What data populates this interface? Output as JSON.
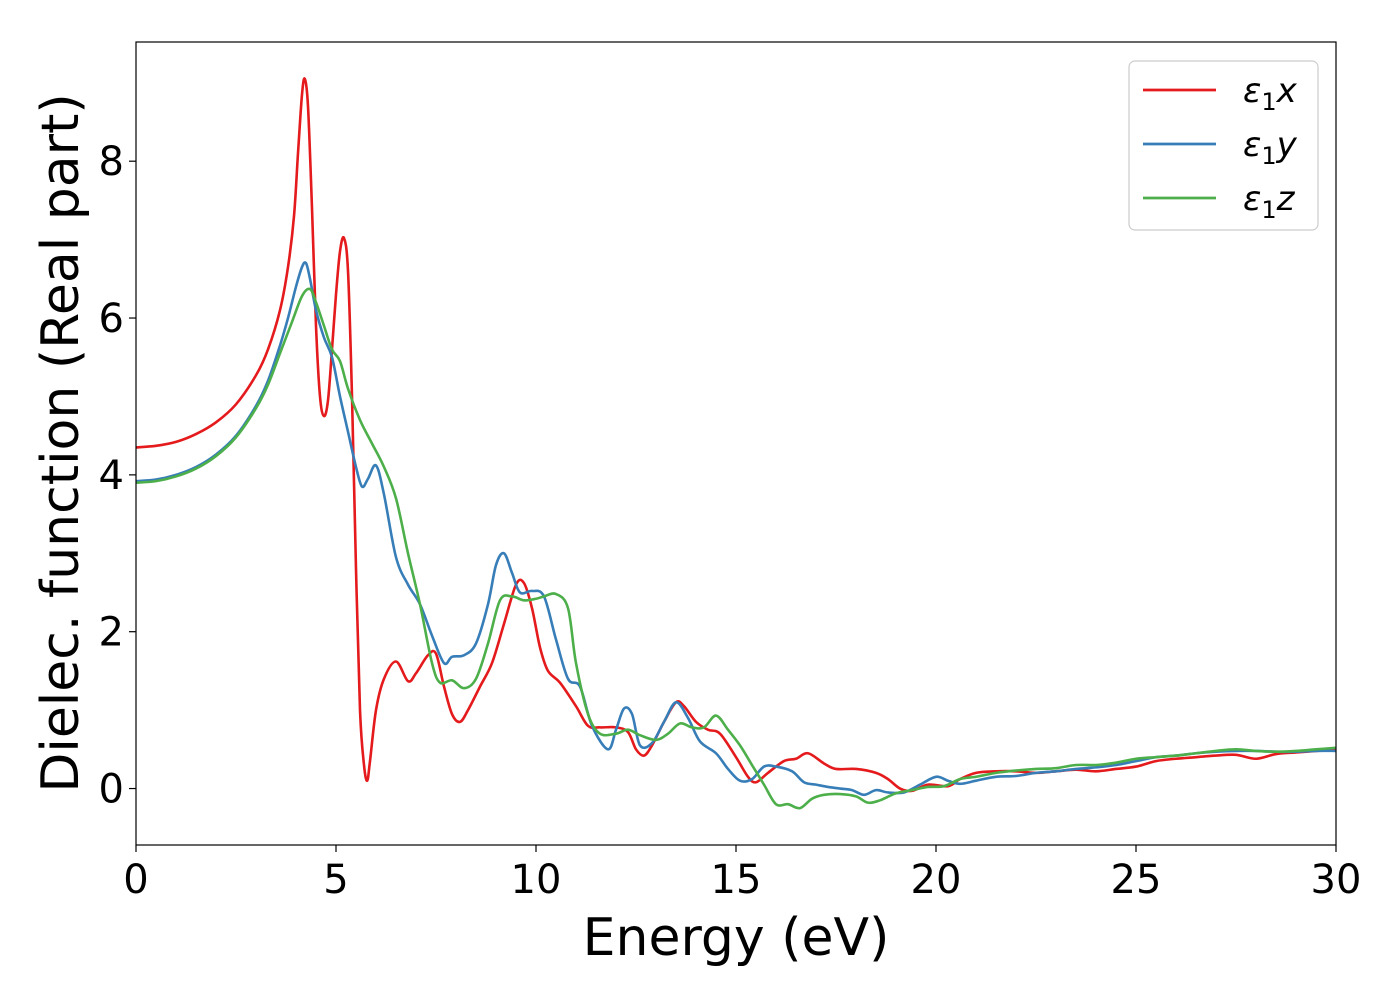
{
  "chart_data": {
    "type": "line",
    "xlabel": "Energy (eV)",
    "ylabel": "Dielec. function (Real part)",
    "xlim": [
      0,
      30
    ],
    "ylim": [
      -0.72,
      9.52
    ],
    "xticks": [
      0,
      5,
      10,
      15,
      20,
      25,
      30
    ],
    "yticks": [
      0,
      2,
      4,
      6,
      8
    ],
    "grid": false,
    "legend_position": "top-right",
    "series": [
      {
        "name": "ε1x",
        "legend_main": "ε",
        "legend_sub": "1",
        "legend_tail": "x",
        "color": "#e41a1c",
        "points": [
          [
            0,
            4.35
          ],
          [
            0.5,
            4.37
          ],
          [
            1,
            4.42
          ],
          [
            1.5,
            4.52
          ],
          [
            2,
            4.67
          ],
          [
            2.5,
            4.9
          ],
          [
            3,
            5.27
          ],
          [
            3.3,
            5.6
          ],
          [
            3.6,
            6.1
          ],
          [
            3.8,
            6.65
          ],
          [
            3.95,
            7.3
          ],
          [
            4.05,
            8.1
          ],
          [
            4.15,
            8.85
          ],
          [
            4.22,
            9.05
          ],
          [
            4.3,
            8.7
          ],
          [
            4.4,
            7.4
          ],
          [
            4.5,
            5.9
          ],
          [
            4.6,
            5.0
          ],
          [
            4.7,
            4.75
          ],
          [
            4.8,
            4.95
          ],
          [
            4.9,
            5.6
          ],
          [
            5.0,
            6.3
          ],
          [
            5.1,
            6.85
          ],
          [
            5.2,
            7.02
          ],
          [
            5.3,
            6.6
          ],
          [
            5.4,
            5.0
          ],
          [
            5.5,
            2.8
          ],
          [
            5.6,
            1.0
          ],
          [
            5.7,
            0.3
          ],
          [
            5.78,
            0.1
          ],
          [
            5.85,
            0.35
          ],
          [
            6.0,
            1.0
          ],
          [
            6.2,
            1.4
          ],
          [
            6.5,
            1.62
          ],
          [
            6.8,
            1.37
          ],
          [
            7.0,
            1.47
          ],
          [
            7.3,
            1.7
          ],
          [
            7.5,
            1.72
          ],
          [
            7.7,
            1.3
          ],
          [
            7.9,
            0.95
          ],
          [
            8.1,
            0.85
          ],
          [
            8.3,
            1.0
          ],
          [
            8.6,
            1.3
          ],
          [
            8.9,
            1.6
          ],
          [
            9.2,
            2.1
          ],
          [
            9.5,
            2.6
          ],
          [
            9.7,
            2.62
          ],
          [
            9.9,
            2.3
          ],
          [
            10.1,
            1.8
          ],
          [
            10.3,
            1.5
          ],
          [
            10.6,
            1.35
          ],
          [
            11.0,
            1.05
          ],
          [
            11.3,
            0.8
          ],
          [
            11.6,
            0.78
          ],
          [
            12.0,
            0.78
          ],
          [
            12.3,
            0.72
          ],
          [
            12.5,
            0.5
          ],
          [
            12.7,
            0.42
          ],
          [
            12.9,
            0.55
          ],
          [
            13.2,
            0.85
          ],
          [
            13.5,
            1.1
          ],
          [
            13.7,
            1.05
          ],
          [
            14.0,
            0.85
          ],
          [
            14.3,
            0.75
          ],
          [
            14.6,
            0.7
          ],
          [
            15.0,
            0.4
          ],
          [
            15.3,
            0.15
          ],
          [
            15.5,
            0.08
          ],
          [
            15.8,
            0.2
          ],
          [
            16.2,
            0.35
          ],
          [
            16.5,
            0.38
          ],
          [
            16.8,
            0.45
          ],
          [
            17.2,
            0.32
          ],
          [
            17.5,
            0.25
          ],
          [
            18.0,
            0.25
          ],
          [
            18.5,
            0.2
          ],
          [
            18.8,
            0.12
          ],
          [
            19.1,
            0.0
          ],
          [
            19.4,
            -0.03
          ],
          [
            19.8,
            0.05
          ],
          [
            20.3,
            0.03
          ],
          [
            20.6,
            0.12
          ],
          [
            21.0,
            0.2
          ],
          [
            21.5,
            0.22
          ],
          [
            22.0,
            0.22
          ],
          [
            22.5,
            0.2
          ],
          [
            23.0,
            0.22
          ],
          [
            23.5,
            0.24
          ],
          [
            24.0,
            0.22
          ],
          [
            24.5,
            0.25
          ],
          [
            25.0,
            0.28
          ],
          [
            25.5,
            0.35
          ],
          [
            26.0,
            0.38
          ],
          [
            26.5,
            0.4
          ],
          [
            27.0,
            0.42
          ],
          [
            27.5,
            0.43
          ],
          [
            28.0,
            0.38
          ],
          [
            28.5,
            0.44
          ],
          [
            29.0,
            0.46
          ],
          [
            29.5,
            0.48
          ],
          [
            30.0,
            0.5
          ]
        ]
      },
      {
        "name": "ε1y",
        "legend_main": "ε",
        "legend_sub": "1",
        "legend_tail": "y",
        "color": "#377eb8",
        "points": [
          [
            0,
            3.92
          ],
          [
            0.5,
            3.94
          ],
          [
            1,
            4.0
          ],
          [
            1.5,
            4.1
          ],
          [
            2,
            4.26
          ],
          [
            2.5,
            4.5
          ],
          [
            3,
            4.88
          ],
          [
            3.3,
            5.2
          ],
          [
            3.6,
            5.65
          ],
          [
            3.8,
            6.0
          ],
          [
            4.0,
            6.4
          ],
          [
            4.15,
            6.65
          ],
          [
            4.25,
            6.7
          ],
          [
            4.35,
            6.5
          ],
          [
            4.5,
            6.1
          ],
          [
            4.7,
            5.75
          ],
          [
            4.9,
            5.5
          ],
          [
            5.1,
            5.0
          ],
          [
            5.3,
            4.55
          ],
          [
            5.5,
            4.1
          ],
          [
            5.65,
            3.85
          ],
          [
            5.8,
            3.95
          ],
          [
            6.0,
            4.12
          ],
          [
            6.2,
            3.75
          ],
          [
            6.5,
            2.95
          ],
          [
            6.8,
            2.6
          ],
          [
            7.1,
            2.35
          ],
          [
            7.4,
            1.95
          ],
          [
            7.7,
            1.6
          ],
          [
            7.9,
            1.68
          ],
          [
            8.2,
            1.7
          ],
          [
            8.5,
            1.85
          ],
          [
            8.8,
            2.35
          ],
          [
            9.0,
            2.85
          ],
          [
            9.2,
            3.0
          ],
          [
            9.4,
            2.75
          ],
          [
            9.6,
            2.5
          ],
          [
            9.9,
            2.52
          ],
          [
            10.2,
            2.45
          ],
          [
            10.5,
            1.9
          ],
          [
            10.8,
            1.4
          ],
          [
            11.1,
            1.3
          ],
          [
            11.4,
            0.8
          ],
          [
            11.8,
            0.5
          ],
          [
            12.0,
            0.75
          ],
          [
            12.2,
            1.02
          ],
          [
            12.4,
            0.95
          ],
          [
            12.6,
            0.55
          ],
          [
            12.9,
            0.58
          ],
          [
            13.2,
            0.85
          ],
          [
            13.5,
            1.1
          ],
          [
            13.8,
            0.9
          ],
          [
            14.1,
            0.6
          ],
          [
            14.5,
            0.45
          ],
          [
            14.8,
            0.25
          ],
          [
            15.1,
            0.1
          ],
          [
            15.4,
            0.12
          ],
          [
            15.7,
            0.28
          ],
          [
            16.0,
            0.28
          ],
          [
            16.4,
            0.22
          ],
          [
            16.7,
            0.08
          ],
          [
            17.0,
            0.05
          ],
          [
            17.3,
            0.02
          ],
          [
            17.6,
            0.0
          ],
          [
            17.9,
            -0.02
          ],
          [
            18.2,
            -0.08
          ],
          [
            18.5,
            -0.02
          ],
          [
            18.8,
            -0.05
          ],
          [
            19.2,
            -0.05
          ],
          [
            19.6,
            0.05
          ],
          [
            20.0,
            0.15
          ],
          [
            20.3,
            0.1
          ],
          [
            20.6,
            0.06
          ],
          [
            21.0,
            0.1
          ],
          [
            21.5,
            0.15
          ],
          [
            22.0,
            0.16
          ],
          [
            22.5,
            0.2
          ],
          [
            23.0,
            0.22
          ],
          [
            23.5,
            0.25
          ],
          [
            24.0,
            0.27
          ],
          [
            24.5,
            0.3
          ],
          [
            25.0,
            0.35
          ],
          [
            25.5,
            0.4
          ],
          [
            26.0,
            0.42
          ],
          [
            26.5,
            0.45
          ],
          [
            27.0,
            0.47
          ],
          [
            27.5,
            0.48
          ],
          [
            28.0,
            0.48
          ],
          [
            28.5,
            0.47
          ],
          [
            29.0,
            0.47
          ],
          [
            29.5,
            0.48
          ],
          [
            30.0,
            0.48
          ]
        ]
      },
      {
        "name": "ε1z",
        "legend_main": "ε",
        "legend_sub": "1",
        "legend_tail": "z",
        "color": "#4daf4a",
        "points": [
          [
            0,
            3.9
          ],
          [
            0.5,
            3.92
          ],
          [
            1,
            3.98
          ],
          [
            1.5,
            4.08
          ],
          [
            2,
            4.24
          ],
          [
            2.5,
            4.48
          ],
          [
            3,
            4.85
          ],
          [
            3.3,
            5.15
          ],
          [
            3.6,
            5.55
          ],
          [
            3.9,
            5.95
          ],
          [
            4.15,
            6.28
          ],
          [
            4.35,
            6.37
          ],
          [
            4.5,
            6.2
          ],
          [
            4.7,
            5.9
          ],
          [
            4.9,
            5.6
          ],
          [
            5.1,
            5.45
          ],
          [
            5.3,
            5.1
          ],
          [
            5.6,
            4.7
          ],
          [
            5.9,
            4.4
          ],
          [
            6.2,
            4.1
          ],
          [
            6.5,
            3.7
          ],
          [
            6.8,
            3.0
          ],
          [
            7.1,
            2.35
          ],
          [
            7.4,
            1.6
          ],
          [
            7.6,
            1.35
          ],
          [
            7.9,
            1.38
          ],
          [
            8.2,
            1.28
          ],
          [
            8.5,
            1.4
          ],
          [
            8.8,
            1.85
          ],
          [
            9.1,
            2.4
          ],
          [
            9.4,
            2.45
          ],
          [
            9.7,
            2.4
          ],
          [
            10.0,
            2.42
          ],
          [
            10.2,
            2.45
          ],
          [
            10.5,
            2.48
          ],
          [
            10.8,
            2.3
          ],
          [
            11.0,
            1.6
          ],
          [
            11.3,
            0.95
          ],
          [
            11.6,
            0.7
          ],
          [
            12.0,
            0.7
          ],
          [
            12.3,
            0.75
          ],
          [
            12.6,
            0.68
          ],
          [
            13.0,
            0.62
          ],
          [
            13.3,
            0.7
          ],
          [
            13.6,
            0.83
          ],
          [
            13.9,
            0.78
          ],
          [
            14.2,
            0.78
          ],
          [
            14.5,
            0.93
          ],
          [
            14.8,
            0.75
          ],
          [
            15.1,
            0.55
          ],
          [
            15.4,
            0.3
          ],
          [
            15.7,
            0.05
          ],
          [
            16.0,
            -0.2
          ],
          [
            16.3,
            -0.2
          ],
          [
            16.6,
            -0.25
          ],
          [
            16.9,
            -0.13
          ],
          [
            17.2,
            -0.08
          ],
          [
            17.6,
            -0.07
          ],
          [
            18.0,
            -0.1
          ],
          [
            18.3,
            -0.18
          ],
          [
            18.6,
            -0.15
          ],
          [
            19.0,
            -0.06
          ],
          [
            19.4,
            -0.02
          ],
          [
            19.8,
            0.02
          ],
          [
            20.2,
            0.03
          ],
          [
            20.6,
            0.12
          ],
          [
            21.0,
            0.15
          ],
          [
            21.5,
            0.2
          ],
          [
            22.0,
            0.23
          ],
          [
            22.5,
            0.25
          ],
          [
            23.0,
            0.26
          ],
          [
            23.5,
            0.3
          ],
          [
            24.0,
            0.3
          ],
          [
            24.5,
            0.33
          ],
          [
            25.0,
            0.38
          ],
          [
            25.5,
            0.4
          ],
          [
            26.0,
            0.42
          ],
          [
            26.5,
            0.45
          ],
          [
            27.0,
            0.48
          ],
          [
            27.5,
            0.5
          ],
          [
            28.0,
            0.48
          ],
          [
            28.5,
            0.47
          ],
          [
            29.0,
            0.48
          ],
          [
            29.5,
            0.5
          ],
          [
            30.0,
            0.52
          ]
        ]
      }
    ]
  }
}
